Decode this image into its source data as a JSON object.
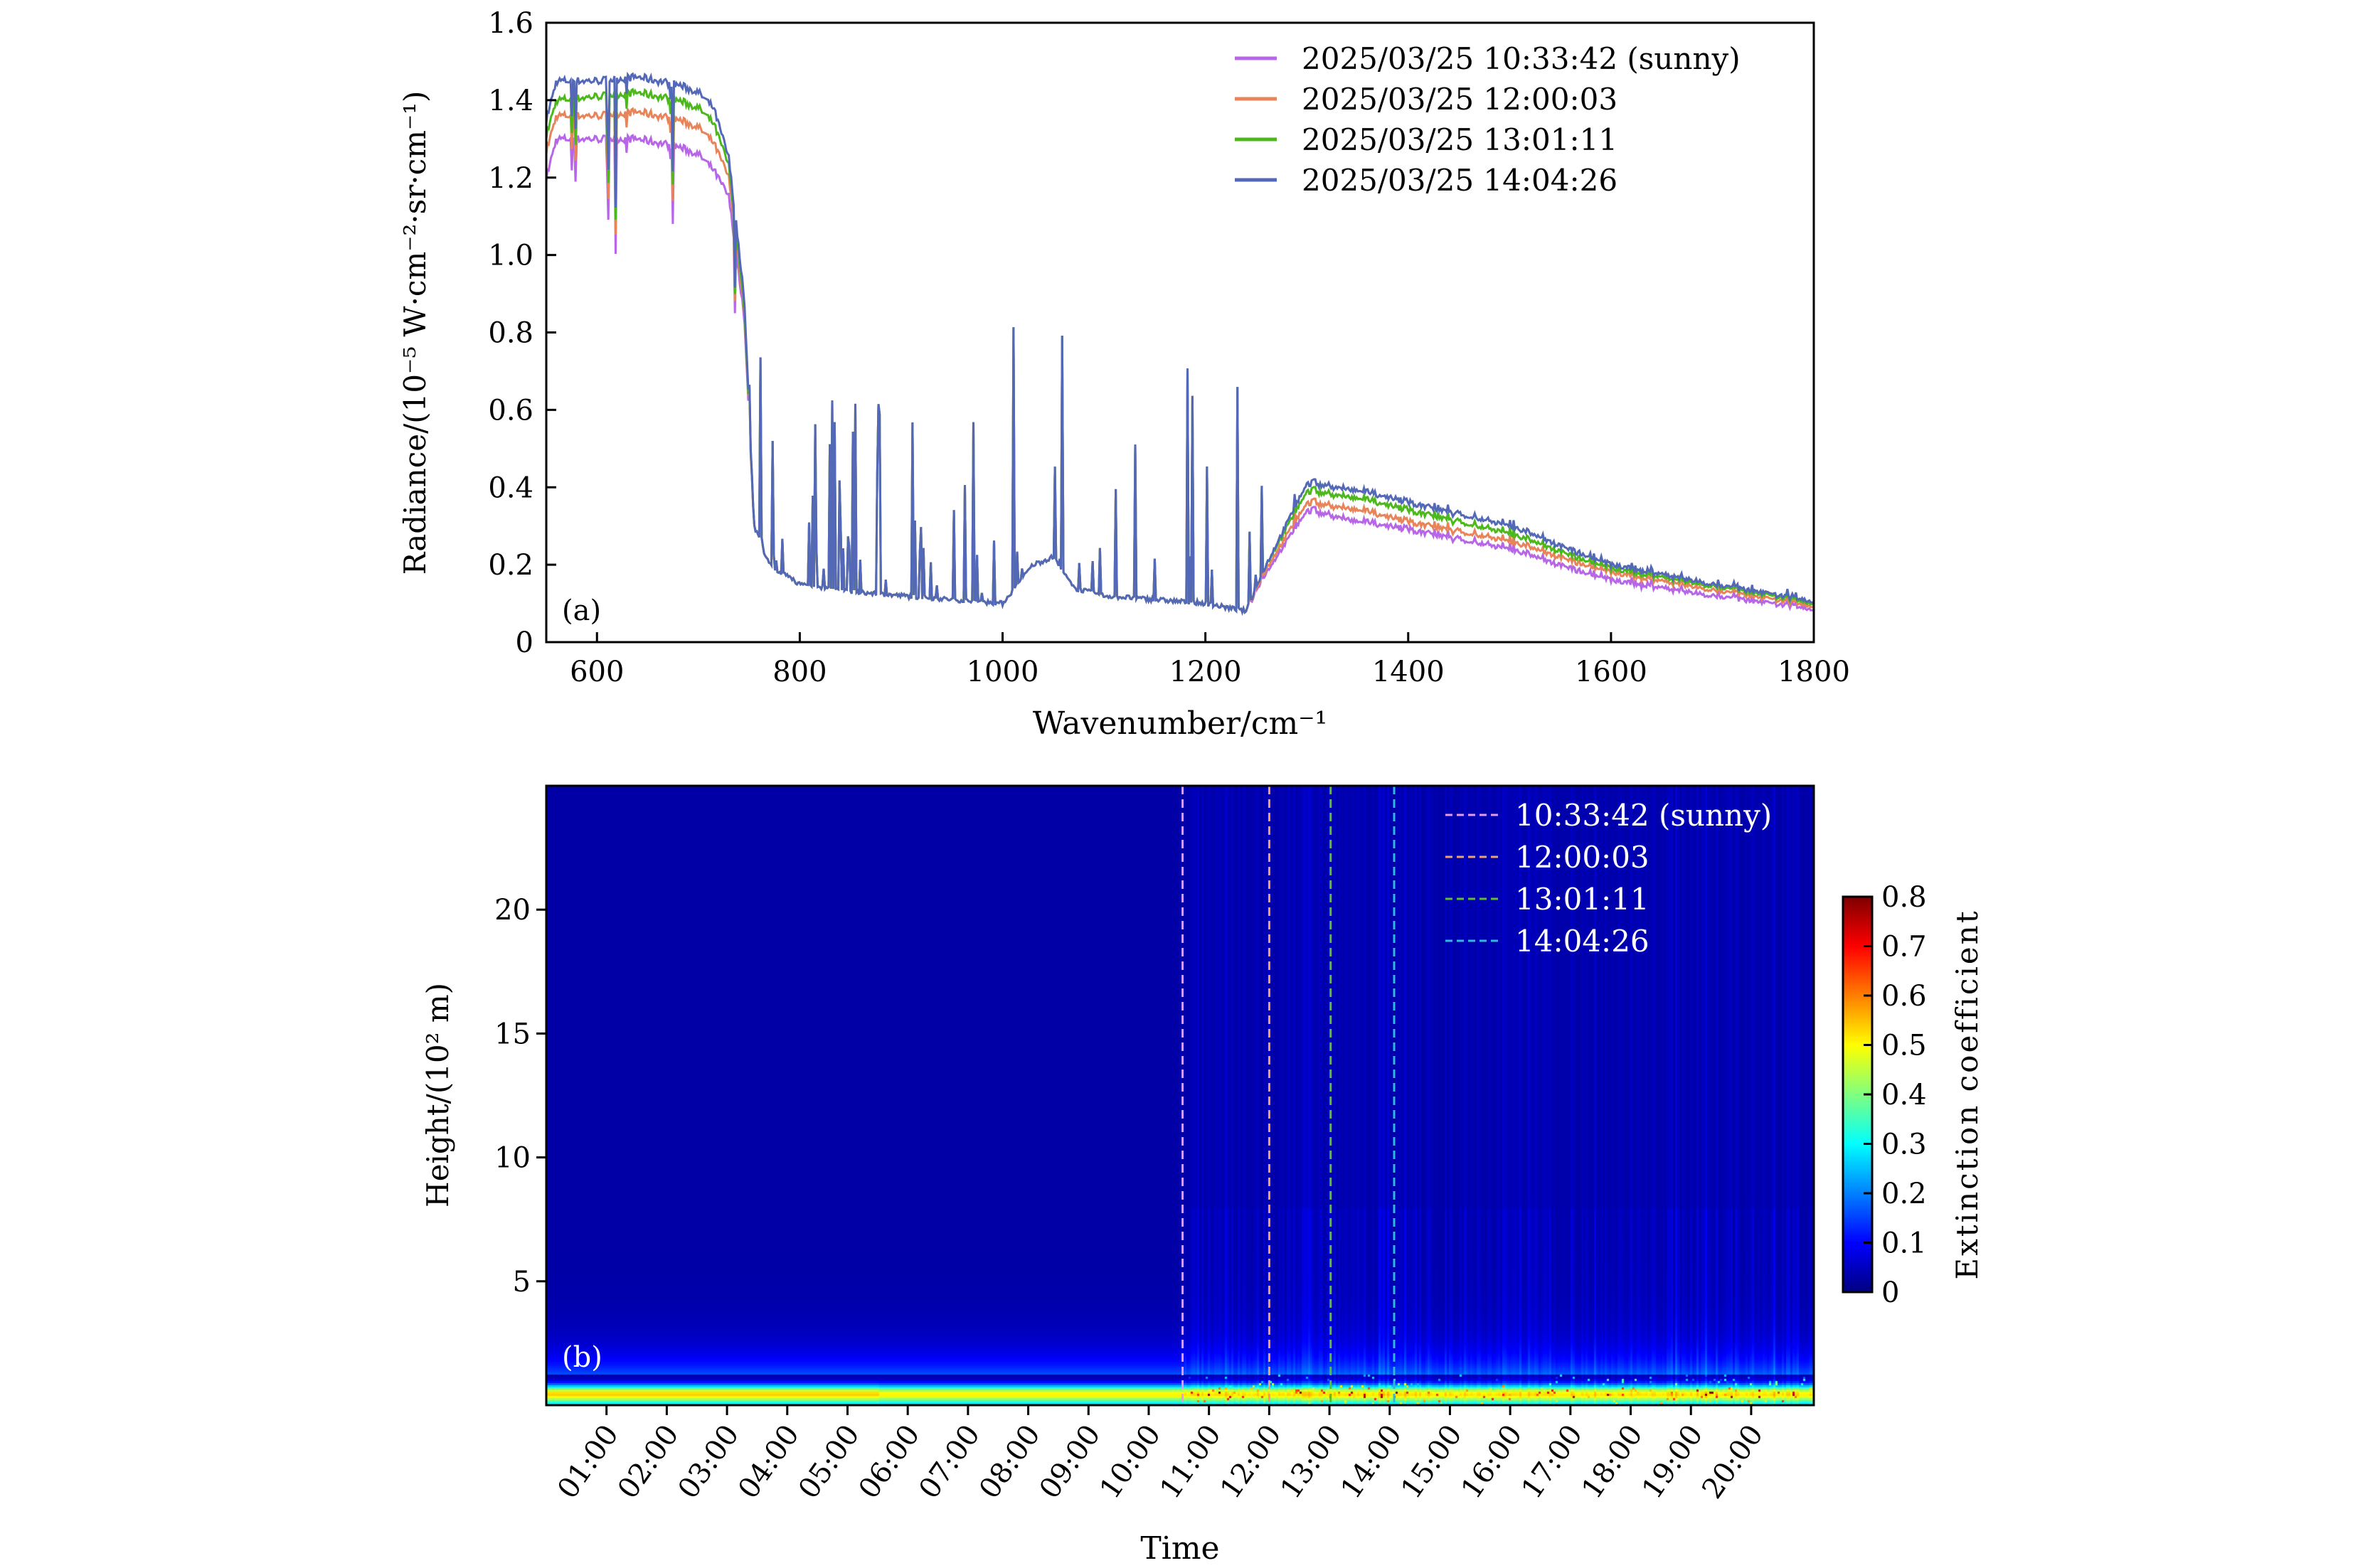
{
  "chart_data": [
    {
      "type": "line",
      "panel_label": "(a)",
      "xlabel": "Wavenumber/cm⁻¹",
      "ylabel": "Radiance/(10⁻⁵ W·cm⁻²·sr·cm⁻¹)",
      "xlim": [
        550,
        1800
      ],
      "ylim": [
        0,
        1.6
      ],
      "xticks": [
        600,
        800,
        1000,
        1200,
        1400,
        1600,
        1800
      ],
      "xtick_labels": [
        "600",
        "800",
        "1000",
        "1200",
        "1400",
        "1600",
        "1800"
      ],
      "yticks": [
        0,
        0.2,
        0.4,
        0.6,
        0.8,
        1.0,
        1.2,
        1.4,
        1.6
      ],
      "ytick_labels": [
        "0",
        "0.2",
        "0.4",
        "0.6",
        "0.8",
        "1.0",
        "1.2",
        "1.4",
        "1.6"
      ],
      "legend_position": "top-right",
      "x": [
        550,
        560,
        600,
        640,
        680,
        700,
        715,
        730,
        745,
        755,
        770,
        800,
        850,
        900,
        950,
        1000,
        1030,
        1050,
        1070,
        1100,
        1200,
        1240,
        1260,
        1300,
        1350,
        1400,
        1500,
        1600,
        1700,
        1800
      ],
      "series": [
        {
          "name": "2025/03/25 10:33:42 (sunny)",
          "color": "#b866e8",
          "values": [
            1.2,
            1.3,
            1.3,
            1.3,
            1.28,
            1.26,
            1.22,
            1.15,
            0.85,
            0.3,
            0.2,
            0.15,
            0.13,
            0.12,
            0.11,
            0.1,
            0.2,
            0.22,
            0.14,
            0.12,
            0.1,
            0.08,
            0.18,
            0.34,
            0.31,
            0.29,
            0.24,
            0.16,
            0.12,
            0.085
          ]
        },
        {
          "name": "2025/03/25 12:00:03",
          "color": "#e8845a",
          "values": [
            1.27,
            1.36,
            1.36,
            1.37,
            1.35,
            1.33,
            1.29,
            1.2,
            0.87,
            0.3,
            0.2,
            0.15,
            0.13,
            0.12,
            0.11,
            0.1,
            0.2,
            0.22,
            0.14,
            0.12,
            0.1,
            0.08,
            0.19,
            0.36,
            0.34,
            0.31,
            0.26,
            0.18,
            0.135,
            0.093
          ]
        },
        {
          "name": "2025/03/25 13:01:11",
          "color": "#4cb81c",
          "values": [
            1.31,
            1.4,
            1.41,
            1.42,
            1.4,
            1.38,
            1.34,
            1.23,
            0.88,
            0.3,
            0.2,
            0.15,
            0.13,
            0.12,
            0.11,
            0.1,
            0.2,
            0.22,
            0.14,
            0.12,
            0.1,
            0.08,
            0.2,
            0.39,
            0.37,
            0.34,
            0.28,
            0.19,
            0.145,
            0.1
          ]
        },
        {
          "name": "2025/03/25 14:04:26",
          "color": "#5468b8",
          "values": [
            1.35,
            1.45,
            1.45,
            1.46,
            1.44,
            1.42,
            1.38,
            1.25,
            0.9,
            0.3,
            0.2,
            0.15,
            0.13,
            0.12,
            0.11,
            0.1,
            0.2,
            0.22,
            0.14,
            0.12,
            0.1,
            0.08,
            0.2,
            0.41,
            0.39,
            0.36,
            0.3,
            0.2,
            0.15,
            0.105
          ]
        }
      ]
    },
    {
      "type": "heatmap",
      "panel_label": "(b)",
      "xlabel": "Time",
      "ylabel": "Height/(10² m)",
      "xlim_hours": [
        0,
        21.04
      ],
      "ylim": [
        0,
        25
      ],
      "xtick_hours": [
        1,
        2,
        3,
        4,
        5,
        6,
        7,
        8,
        9,
        10,
        11,
        12,
        13,
        14,
        15,
        16,
        17,
        18,
        19,
        20
      ],
      "xtick_labels": [
        "01:00",
        "02:00",
        "03:00",
        "04:00",
        "05:00",
        "06:00",
        "07:00",
        "08:00",
        "09:00",
        "10:00",
        "11:00",
        "12:00",
        "13:00",
        "14:00",
        "15:00",
        "16:00",
        "17:00",
        "18:00",
        "19:00",
        "20:00"
      ],
      "yticks": [
        5,
        10,
        15,
        20
      ],
      "ytick_labels": [
        "5",
        "10",
        "15",
        "20"
      ],
      "colorbar": {
        "label": "Extinction coefficient",
        "range": [
          0,
          0.8
        ],
        "ticks": [
          "0",
          "0.1",
          "0.2",
          "0.3",
          "0.4",
          "0.5",
          "0.6",
          "0.7",
          "0.8"
        ],
        "colormap": "jet"
      },
      "legend_position": "top-right",
      "markers": [
        {
          "name": "10:33:42 (sunny)",
          "hour": 10.562,
          "color": "#e89ae8"
        },
        {
          "name": "12:00:03",
          "hour": 12.001,
          "color": "#f0a070"
        },
        {
          "name": "13:01:11",
          "hour": 13.02,
          "color": "#5cc02c"
        },
        {
          "name": "14:04:26",
          "hour": 14.074,
          "color": "#30b8e0"
        }
      ],
      "surface_layer_extinction": {
        "height_peak": 0.5,
        "value_before_0530": 0.45,
        "value_after_0530": 0.42,
        "value_above_2": 0.03
      }
    }
  ]
}
